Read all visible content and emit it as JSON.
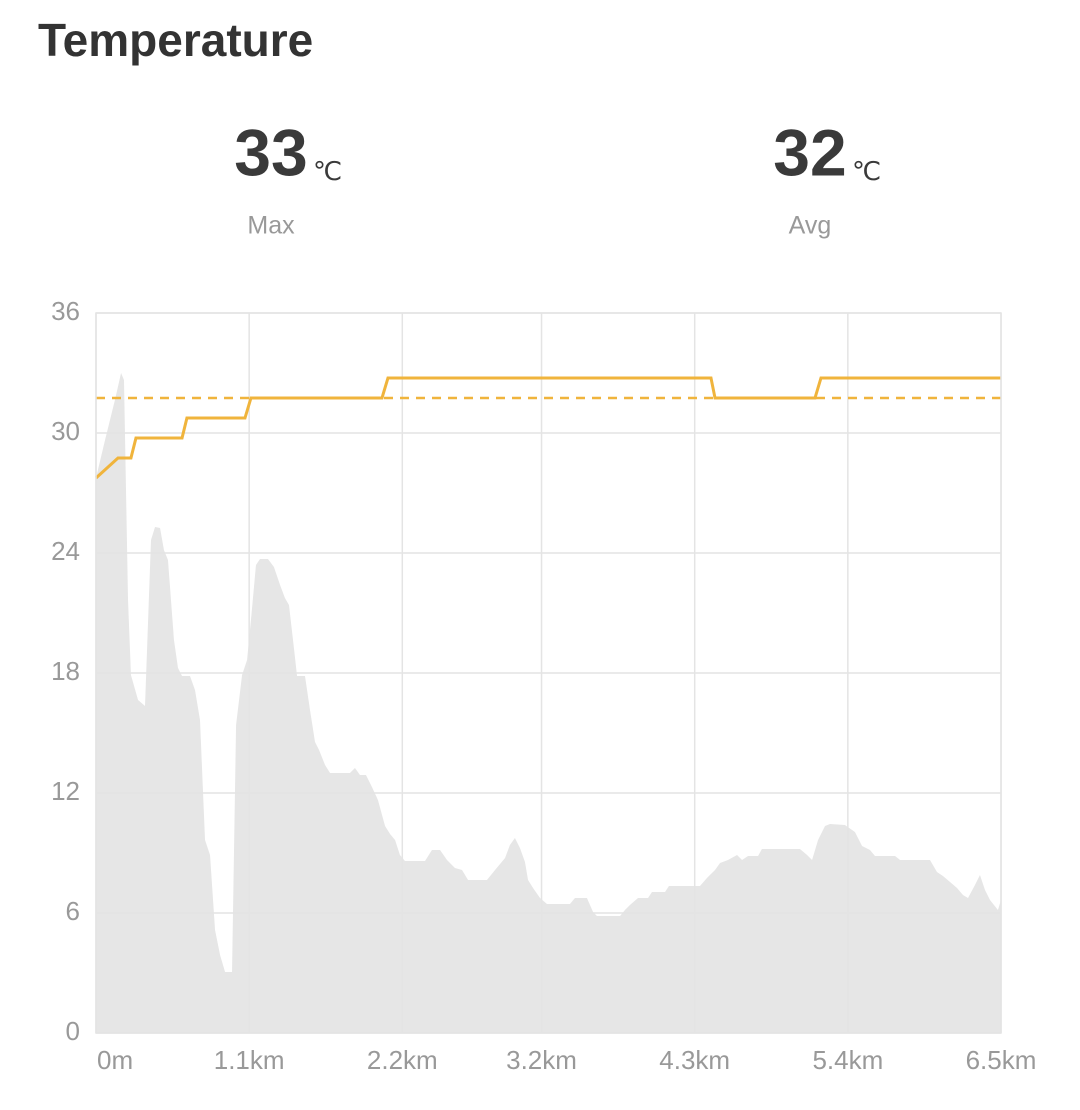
{
  "header": {
    "title": "Temperature"
  },
  "stats": [
    {
      "value": 33,
      "unit": "℃",
      "label": "Max"
    },
    {
      "value": 32,
      "unit": "℃",
      "label": "Avg"
    }
  ],
  "chart_data": {
    "type": "area_line",
    "xlim": [
      0,
      6.5
    ],
    "xticks": [
      {
        "value": 0,
        "label": "0m"
      },
      {
        "value": 1.1,
        "label": "1.1km"
      },
      {
        "value": 2.2,
        "label": "2.2km"
      },
      {
        "value": 3.2,
        "label": "3.2km"
      },
      {
        "value": 4.3,
        "label": "4.3km"
      },
      {
        "value": 5.4,
        "label": "5.4km"
      },
      {
        "value": 6.5,
        "label": "6.5km"
      }
    ],
    "ylim": [
      0,
      36
    ],
    "yticks": [
      0,
      6,
      12,
      18,
      24,
      30,
      36
    ],
    "grid": true,
    "avg_line": 31.75,
    "avg_color": "#f0b43c",
    "series": [
      {
        "kind": "area",
        "color": "#e6e6e6",
        "x": [
          0,
          0.065,
          0.136,
          0.18,
          0.201,
          0.23,
          0.251,
          0.302,
          0.352,
          0.395,
          0.424,
          0.46,
          0.488,
          0.517,
          0.56,
          0.589,
          0.618,
          0.675,
          0.711,
          0.747,
          0.783,
          0.819,
          0.855,
          0.891,
          0.927,
          0.977,
          1.006,
          1.049,
          1.085,
          1.113,
          1.149,
          1.178,
          1.235,
          1.278,
          1.322,
          1.357,
          1.386,
          1.415,
          1.444,
          1.501,
          1.537,
          1.573,
          1.602,
          1.645,
          1.681,
          1.824,
          1.86,
          1.896,
          1.939,
          1.982,
          2.025,
          2.076,
          2.112,
          2.148,
          2.183,
          2.219,
          2.363,
          2.413,
          2.471,
          2.521,
          2.578,
          2.629,
          2.672,
          2.808,
          2.866,
          2.938,
          2.973,
          3.009,
          3.045,
          3.081,
          3.103,
          3.139,
          3.189,
          3.239,
          3.404,
          3.44,
          3.526,
          3.57,
          3.598,
          3.764,
          3.799,
          3.835,
          3.893,
          3.965,
          3.993,
          4.087,
          4.115,
          4.338,
          4.388,
          4.446,
          4.482,
          4.539,
          4.604,
          4.64,
          4.683,
          4.755,
          4.783,
          5.056,
          5.107,
          5.143,
          5.186,
          5.236,
          5.272,
          5.379,
          5.451,
          5.502,
          5.559,
          5.595,
          5.739,
          5.775,
          5.99,
          6.04,
          6.083,
          6.134,
          6.184,
          6.227,
          6.263,
          6.313,
          6.349,
          6.385,
          6.421,
          6.478,
          6.5
        ],
        "values": [
          27.75,
          29.65,
          31.65,
          33.0,
          32.65,
          21.65,
          17.9,
          16.65,
          16.35,
          24.65,
          25.3,
          25.25,
          24.15,
          23.65,
          19.65,
          18.25,
          17.85,
          17.85,
          17.15,
          15.65,
          9.65,
          8.9,
          5.15,
          3.9,
          3.05,
          3.05,
          15.4,
          17.9,
          18.65,
          20.65,
          23.4,
          23.7,
          23.7,
          23.3,
          22.4,
          21.75,
          21.4,
          19.65,
          17.85,
          17.85,
          16.15,
          14.55,
          14.15,
          13.4,
          13.0,
          13.0,
          13.25,
          12.9,
          12.9,
          12.3,
          11.65,
          10.35,
          9.95,
          9.65,
          8.9,
          8.6,
          8.6,
          9.15,
          9.15,
          8.65,
          8.25,
          8.15,
          7.65,
          7.65,
          8.15,
          8.75,
          9.4,
          9.75,
          9.25,
          8.55,
          7.65,
          7.25,
          6.75,
          6.45,
          6.45,
          6.75,
          6.75,
          6.05,
          5.85,
          5.85,
          6.15,
          6.4,
          6.75,
          6.75,
          7.05,
          7.05,
          7.35,
          7.35,
          7.75,
          8.15,
          8.5,
          8.65,
          8.9,
          8.65,
          8.85,
          8.85,
          9.2,
          9.2,
          8.9,
          8.65,
          9.65,
          10.35,
          10.45,
          10.4,
          10.05,
          9.35,
          9.15,
          8.85,
          8.85,
          8.65,
          8.65,
          8.05,
          7.85,
          7.55,
          7.25,
          6.9,
          6.75,
          7.4,
          7.9,
          7.15,
          6.65,
          6.15,
          6.65
        ]
      },
      {
        "kind": "line",
        "color": "#f0b43c",
        "x": [
          0,
          0.158,
          0.251,
          0.287,
          0.618,
          0.653,
          1.07,
          1.113,
          2.054,
          2.097,
          4.417,
          4.446,
          5.164,
          5.207,
          6.5
        ],
        "values": [
          27.75,
          28.75,
          28.75,
          29.75,
          29.75,
          30.75,
          30.75,
          31.75,
          31.75,
          32.75,
          32.75,
          31.75,
          31.75,
          32.75,
          32.75
        ]
      }
    ]
  }
}
